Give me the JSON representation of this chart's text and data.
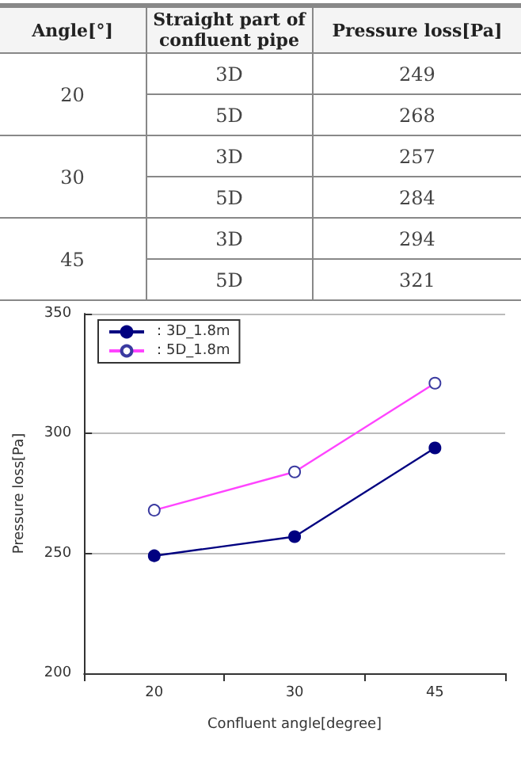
{
  "chart_data": [
    {
      "type": "other",
      "annotations": [
        "Angle[°]",
        "Straight part of confluent pipe",
        "Pressure loss[Pa]",
        "20",
        "3D",
        "249",
        "5D",
        "268",
        "30",
        "3D",
        "257",
        "5D",
        "284",
        "45",
        "3D",
        "294",
        "5D",
        "321"
      ]
    },
    {
      "type": "line",
      "xlabel": "Confluent angle[degree]",
      "ylabel": "Pressure loss[Pa]",
      "categories": [
        "20",
        "30",
        "45"
      ],
      "series": [
        {
          "name": "：3D_1.8m",
          "color": "#000080",
          "values": [
            249,
            257,
            294
          ]
        },
        {
          "name": "：5D_1.8m",
          "color": "#ff44ff",
          "values": [
            268,
            284,
            321
          ]
        }
      ],
      "ylim": [
        200,
        350
      ],
      "yticks": [
        200,
        250,
        300,
        350
      ],
      "grid": "y",
      "legend": "top left",
      "marker": "circle"
    }
  ]
}
